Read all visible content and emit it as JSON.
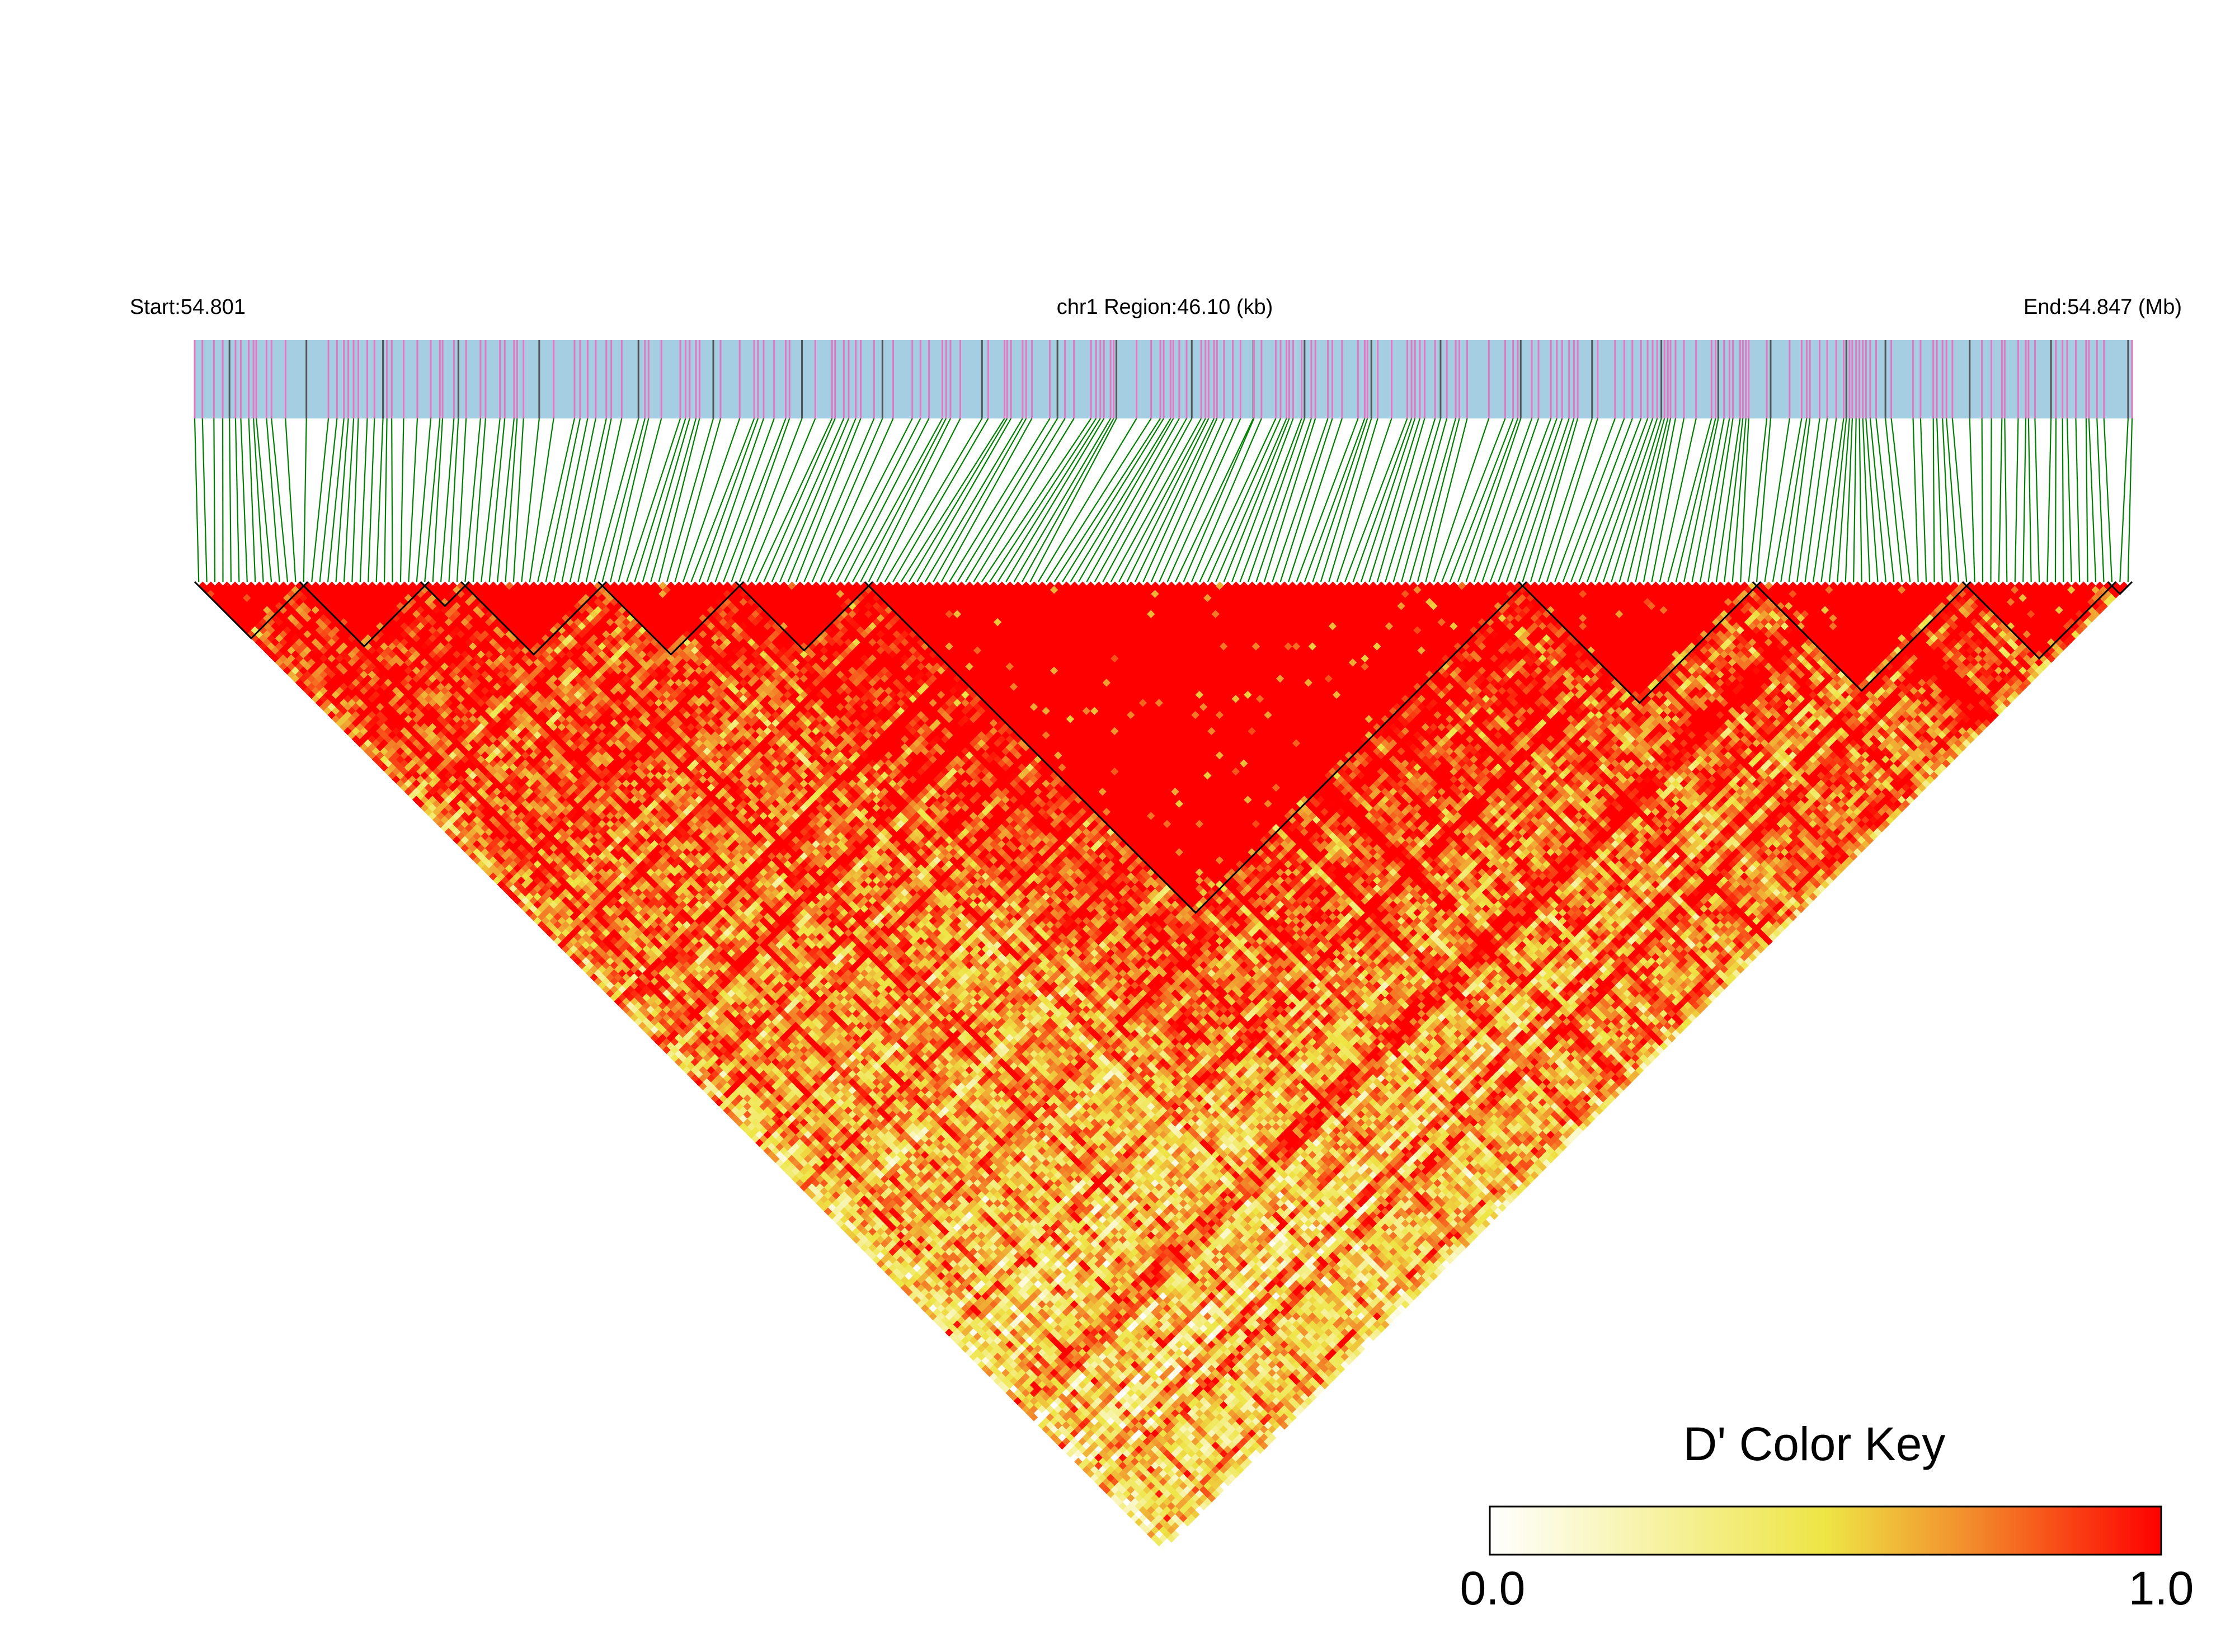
{
  "chart_data": {
    "type": "heatmap",
    "subtype": "ld-triangle",
    "header": {
      "start_label": "Start:54.801",
      "region_label": "chr1 Region:46.10 (kb)",
      "end_label": "End:54.847 (Mb)"
    },
    "chromosome": "chr1",
    "region_start_mb": 54.801,
    "region_end_mb": 54.847,
    "region_length_kb": 46.1,
    "snp_count": 240,
    "color_key": {
      "title": "D' Color Key",
      "min_label": "0.0",
      "max_label": "1.0",
      "range": [
        0.0,
        1.0
      ],
      "stops": [
        {
          "value": 0.0,
          "color": "#ffffff"
        },
        {
          "value": 0.5,
          "color": "#eee545"
        },
        {
          "value": 0.72,
          "color": "#f28a2b"
        },
        {
          "value": 1.0,
          "color": "#ff0000"
        }
      ]
    },
    "haplotype_blocks": [
      {
        "first_snp": 0,
        "last_snp": 26
      },
      {
        "first_snp": 26,
        "last_snp": 55
      },
      {
        "first_snp": 55,
        "last_snp": 65
      },
      {
        "first_snp": 65,
        "last_snp": 100
      },
      {
        "first_snp": 100,
        "last_snp": 133
      },
      {
        "first_snp": 133,
        "last_snp": 165
      },
      {
        "first_snp": 165,
        "last_snp": 327
      },
      {
        "first_snp": 327,
        "last_snp": 386
      },
      {
        "first_snp": 386,
        "last_snp": 438
      },
      {
        "first_snp": 438,
        "last_snp": 474
      },
      {
        "first_snp": 474,
        "last_snp": 480
      }
    ],
    "block_index_scale": 480,
    "colors": {
      "snp_bar_background": "#a6cee3",
      "snp_tick": "#e377c2",
      "snp_tick_dark": "#555555",
      "connector_line": "#008000",
      "block_outline": "#000000"
    }
  }
}
